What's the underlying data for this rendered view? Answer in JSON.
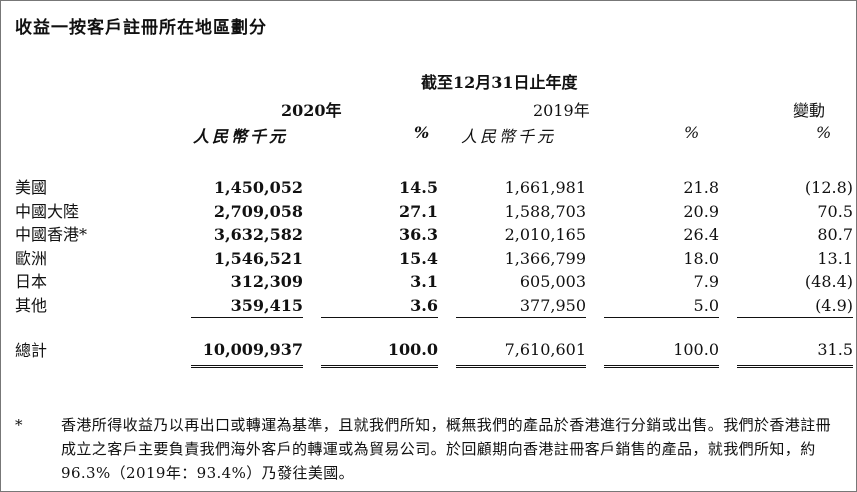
{
  "title": "收益一按客戶註冊所在地區劃分",
  "period_header": "截至12月31日止年度",
  "columns": {
    "y2020": "2020年",
    "y2019": "2019年",
    "change": "變動",
    "rmb_thousand_2020": "人民幣千元",
    "pct_2020": "%",
    "rmb_thousand_2019": "人民幣千元",
    "pct_2019": "%",
    "pct_change": "%"
  },
  "rows": [
    {
      "region": "美國",
      "rmb_2020": "1,450,052",
      "pct_2020": "14.5",
      "rmb_2019": "1,661,981",
      "pct_2019": "21.8",
      "change": "(12.8)"
    },
    {
      "region": "中國大陸",
      "rmb_2020": "2,709,058",
      "pct_2020": "27.1",
      "rmb_2019": "1,588,703",
      "pct_2019": "20.9",
      "change": "70.5"
    },
    {
      "region": "中國香港*",
      "rmb_2020": "3,632,582",
      "pct_2020": "36.3",
      "rmb_2019": "2,010,165",
      "pct_2019": "26.4",
      "change": "80.7"
    },
    {
      "region": "歐洲",
      "rmb_2020": "1,546,521",
      "pct_2020": "15.4",
      "rmb_2019": "1,366,799",
      "pct_2019": "18.0",
      "change": "13.1"
    },
    {
      "region": "日本",
      "rmb_2020": "312,309",
      "pct_2020": "3.1",
      "rmb_2019": "605,003",
      "pct_2019": "7.9",
      "change": "(48.4)"
    },
    {
      "region": "其他",
      "rmb_2020": "359,415",
      "pct_2020": "3.6",
      "rmb_2019": "377,950",
      "pct_2019": "5.0",
      "change": "(4.9)"
    }
  ],
  "total": {
    "region": "總計",
    "rmb_2020": "10,009,937",
    "pct_2020": "100.0",
    "rmb_2019": "7,610,601",
    "pct_2019": "100.0",
    "change": "31.5"
  },
  "footnote": {
    "mark": "*",
    "text": "香港所得收益乃以再出口或轉運為基準，且就我們所知，概無我們的產品於香港進行分銷或出售。我們於香港註冊成立之客戶主要負責我們海外客戶的轉運或為貿易公司。於回顧期向香港註冊客戶銷售的產品，就我們所知，約96.3%（2019年：93.4%）乃發往美國。"
  }
}
